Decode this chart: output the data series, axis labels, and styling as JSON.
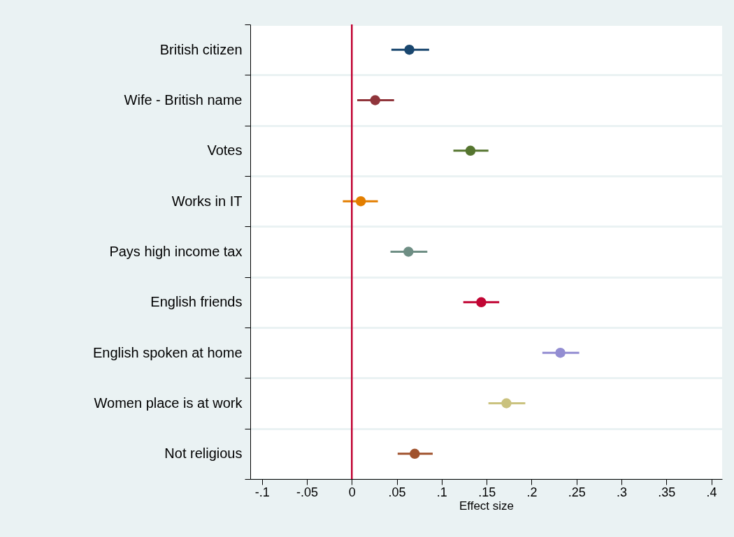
{
  "chart_data": {
    "type": "scatter",
    "orientation": "horizontal",
    "xlabel": "Effect size",
    "categories": [
      "British citizen",
      "Wife - British name",
      "Votes",
      "Works in IT",
      "Pays high income tax",
      "English friends",
      "English spoken at home",
      "Women place is at work",
      "Not religious"
    ],
    "values": [
      0.064,
      0.026,
      0.132,
      0.01,
      0.063,
      0.144,
      0.232,
      0.172,
      0.07
    ],
    "errors": [
      [
        0.044,
        0.086
      ],
      [
        0.006,
        0.047
      ],
      [
        0.113,
        0.152
      ],
      [
        -0.01,
        0.029
      ],
      [
        0.043,
        0.084
      ],
      [
        0.124,
        0.164
      ],
      [
        0.212,
        0.253
      ],
      [
        0.152,
        0.193
      ],
      [
        0.051,
        0.09
      ]
    ],
    "colors": [
      "#1a476f",
      "#90353b",
      "#55752f",
      "#e37e00",
      "#6e8e84",
      "#c10534",
      "#938dd2",
      "#cac27e",
      "#a0522d"
    ],
    "xlim": [
      -0.113,
      0.412
    ],
    "xticks": [
      {
        "value": -0.1,
        "label": "-.1"
      },
      {
        "value": -0.05,
        "label": "-.05"
      },
      0,
      {
        "value": 0.05,
        "label": ".05"
      },
      {
        "value": 0.1,
        "label": ".1"
      },
      {
        "value": 0.15,
        "label": ".15"
      },
      {
        "value": 0.2,
        "label": ".2"
      },
      {
        "value": 0.25,
        "label": ".25"
      },
      {
        "value": 0.3,
        "label": ".3"
      },
      {
        "value": 0.35,
        "label": ".35"
      },
      {
        "value": 0.4,
        "label": ".4"
      }
    ],
    "ref_lines": [
      {
        "axis": "x",
        "value": 0,
        "color": "#c10534"
      }
    ],
    "grid": "y",
    "marker": "circle"
  }
}
